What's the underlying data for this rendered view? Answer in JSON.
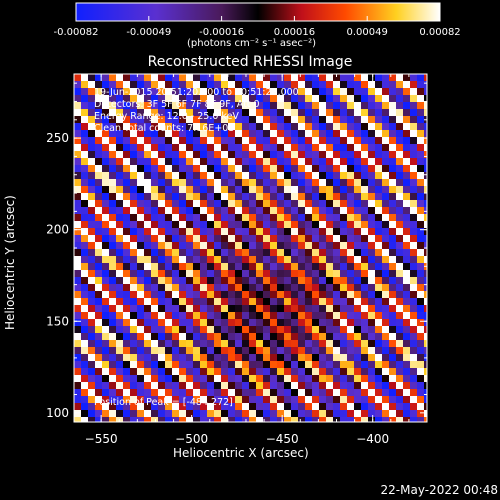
{
  "colorbar": {
    "tick_labels": [
      "-0.00082",
      "-0.00049",
      "-0.00016",
      "0.00016",
      "0.00049",
      "0.00082"
    ],
    "unit_label": "(photons cm⁻² s⁻¹ asec⁻²)",
    "range": [
      -0.00082,
      0.00082
    ]
  },
  "plot": {
    "title": "Reconstructed RHESSI Image",
    "info_lines": [
      "19-Jun-2015 20:51:20.000 to 20:51:28.000",
      "Detectors: 3F 5F 6F 7F 8F 9F, Att 0",
      "Energy Range: 12.0 - 25.0 keV",
      "Clean    Total counts: 7.16E+03"
    ],
    "peak_label": "Position of Peak = [-484,272]",
    "footer_date": "22-May-2022 00:48"
  },
  "chart_data": {
    "type": "heatmap",
    "title": "Reconstructed RHESSI Image",
    "xlabel": "Heliocentric X (arcsec)",
    "ylabel": "Heliocentric Y (arcsec)",
    "xlim": [
      -565,
      -370
    ],
    "ylim": [
      95,
      285
    ],
    "x_ticks": [
      -550,
      -500,
      -450,
      -400
    ],
    "y_ticks": [
      100,
      150,
      200,
      250
    ],
    "x_tick_labels": [
      "−550",
      "−500",
      "−450",
      "−400"
    ],
    "y_tick_labels": [
      "100",
      "150",
      "200",
      "250"
    ],
    "peak": [
      -484,
      272
    ],
    "colormap": "blue-black-red-yellow-white",
    "value_range": [
      -0.00082,
      0.00082
    ]
  }
}
